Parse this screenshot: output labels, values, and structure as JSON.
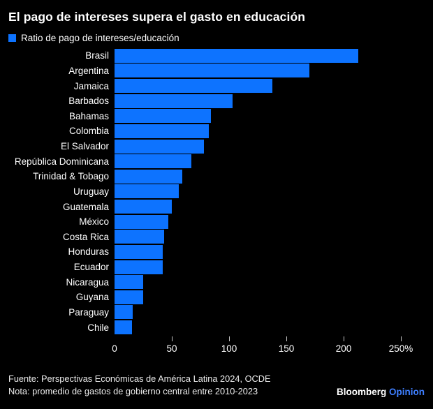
{
  "title": "El pago de intereses supera el gasto en educación",
  "legend": {
    "label": "Ratio de pago de intereses/educación",
    "swatch_color": "#0d73ff"
  },
  "chart_data": {
    "type": "bar",
    "orientation": "horizontal",
    "title": "El pago de intereses supera el gasto en educación",
    "series_label": "Ratio de pago de intereses/educación",
    "categories": [
      "Brasil",
      "Argentina",
      "Jamaica",
      "Barbados",
      "Bahamas",
      "Colombia",
      "El Salvador",
      "República Dominicana",
      "Trinidad & Tobago",
      "Uruguay",
      "Guatemala",
      "México",
      "Costa Rica",
      "Honduras",
      "Ecuador",
      "Nicaragua",
      "Guyana",
      "Paraguay",
      "Chile"
    ],
    "values": [
      213,
      170,
      138,
      103,
      84,
      82,
      78,
      67,
      59,
      56,
      50,
      47,
      43,
      42,
      42,
      25,
      25,
      16,
      15
    ],
    "unit": "%",
    "xlim": [
      0,
      250
    ],
    "xticks": [
      0,
      50,
      100,
      150,
      200,
      250
    ],
    "xtick_labels": [
      "0",
      "50",
      "100",
      "150",
      "200",
      "250%"
    ],
    "bar_color": "#0d73ff",
    "grid": false,
    "legend_position": "top-left",
    "background": "#000000"
  },
  "footer": {
    "source": "Fuente: Perspectivas Económicas de América Latina 2024, OCDE",
    "note": "Nota: promedio de gastos de gobierno central entre 2010-2023"
  },
  "brand": {
    "name": "Bloomberg",
    "product": "Opinion",
    "name_color": "#ffffff",
    "product_color": "#3e7fff"
  }
}
